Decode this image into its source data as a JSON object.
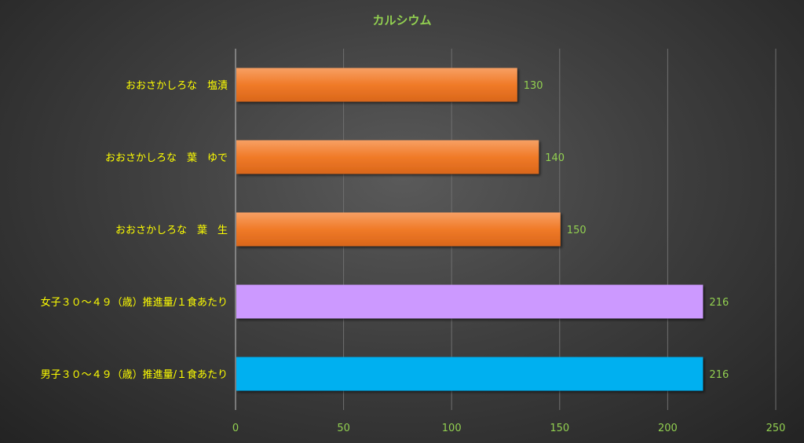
{
  "chart_data": {
    "type": "bar",
    "orientation": "horizontal",
    "title": "カルシウム",
    "categories": [
      "おおさかしろな　塩漬",
      "おおさかしろな　葉　ゆで",
      "おおさかしろな　葉　生",
      "女子３０～４９（歳）推進量/１食あたり",
      "男子３０～４９（歳）推進量/１食あたり"
    ],
    "values": [
      130,
      140,
      150,
      216,
      216
    ],
    "data_labels": [
      "130",
      "140",
      "150",
      "216",
      "216"
    ],
    "bar_colors": [
      "#f07a28",
      "#f07a28",
      "#f07a28",
      "#cc99ff",
      "#00b0f0"
    ],
    "xlim": [
      0,
      250
    ],
    "x_ticks": [
      0,
      50,
      100,
      150,
      200,
      250
    ],
    "x_tick_labels": [
      "0",
      "50",
      "100",
      "150",
      "200",
      "250"
    ],
    "xlabel": "",
    "ylabel": "",
    "grid": "vertical",
    "legend": "none"
  },
  "colors": {
    "title": "#92d050",
    "category_label": "#ffff00",
    "tick_label": "#92d050",
    "data_label": "#92d050",
    "gridline": "#6f6f6f",
    "axis_line": "#bfbfbf"
  }
}
